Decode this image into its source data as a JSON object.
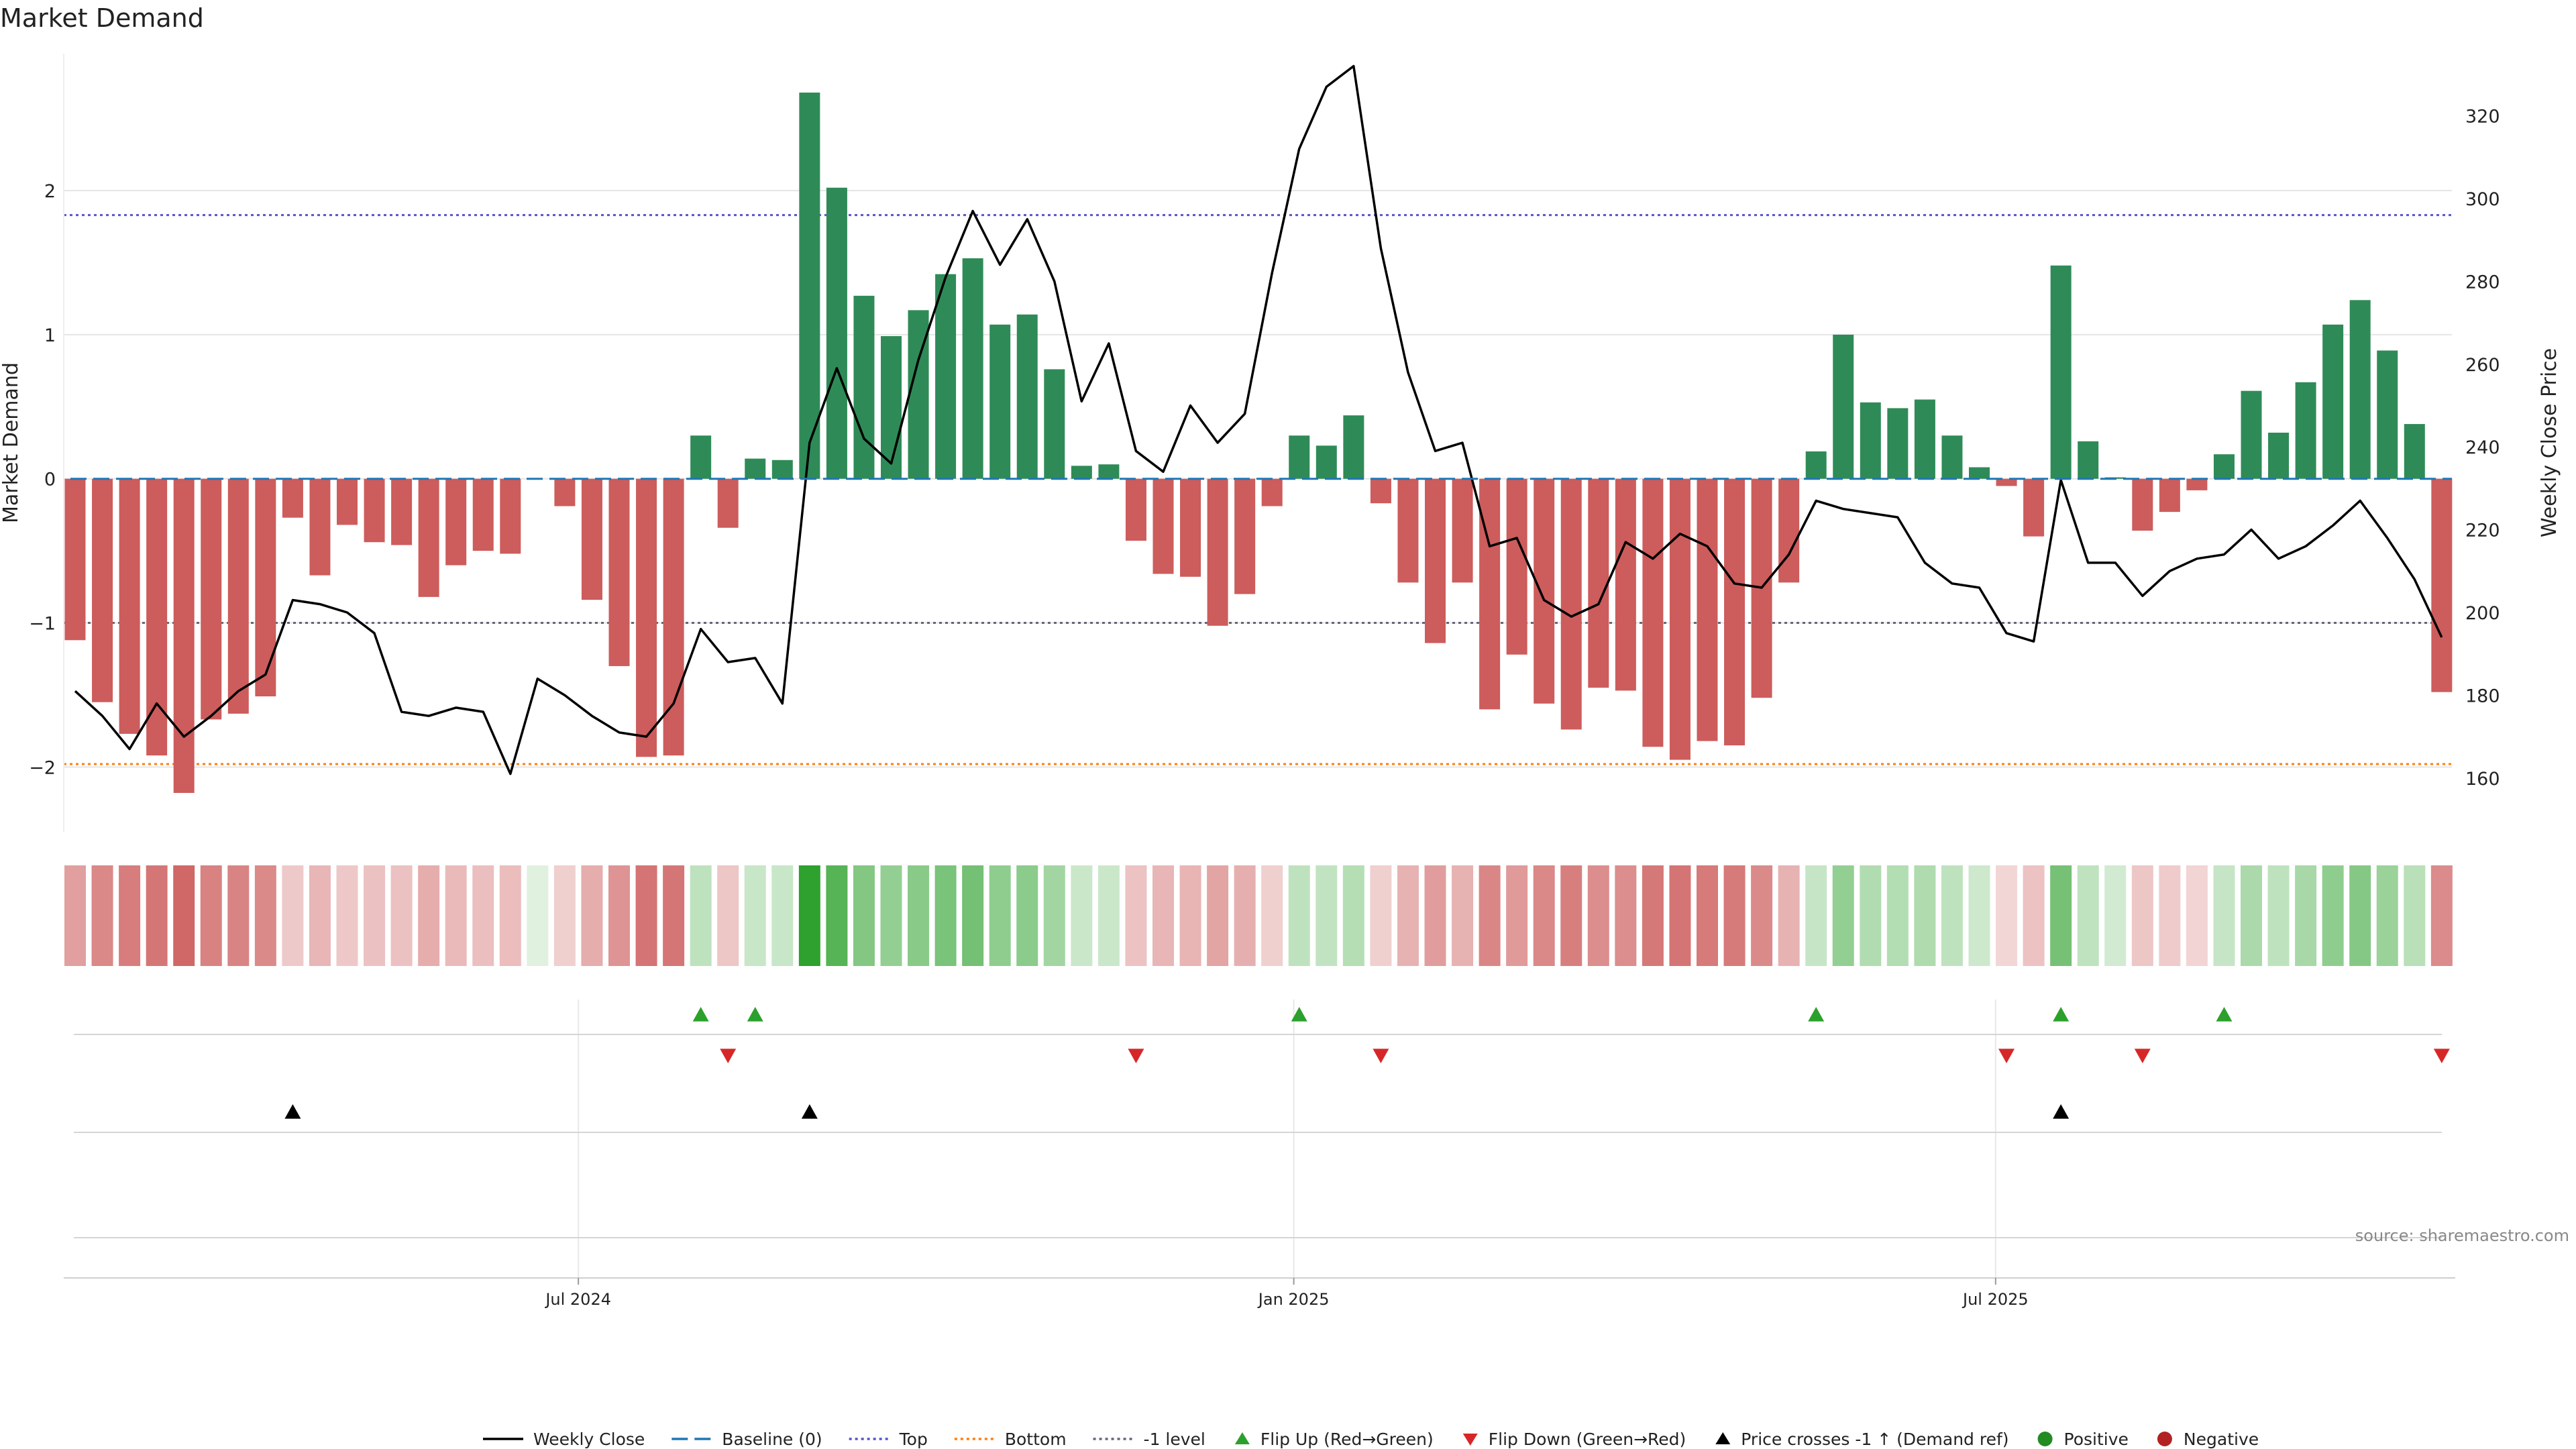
{
  "colors": {
    "positive_bar": "#2e8b57",
    "negative_bar": "#cd5c5c",
    "price_line": "#000000",
    "baseline": "#1f77b4",
    "top": "#5555cc",
    "bottom": "#ff7f0e",
    "minus_one": "#666677",
    "flip_up": "#2ca02c",
    "flip_down": "#d62728",
    "cross": "#000000",
    "grid": "#e5e5e5"
  },
  "chart_data": {
    "type": "bar",
    "title": "Market Demand",
    "ylabel": "Market Demand",
    "y2label": "Weekly Close Price",
    "xlabel": "",
    "ylim": [
      -2.45,
      2.95
    ],
    "y2lim": [
      147,
      335
    ],
    "yticks": [
      -2,
      -1,
      0,
      1,
      2
    ],
    "y2ticks": [
      160,
      180,
      200,
      220,
      240,
      260,
      280,
      300,
      320
    ],
    "xticks": [
      {
        "index": 18.5,
        "label": "Jul 2024"
      },
      {
        "index": 44.8,
        "label": "Jan 2025"
      },
      {
        "index": 70.6,
        "label": "Jul 2025"
      }
    ],
    "reference_lines": {
      "baseline": 0,
      "top": 1.83,
      "bottom": -1.98,
      "minus_one": -1.0
    },
    "demand": [
      -1.12,
      -1.55,
      -1.77,
      -1.92,
      -2.18,
      -1.67,
      -1.63,
      -1.51,
      -0.27,
      -0.67,
      -0.32,
      -0.44,
      -0.46,
      -0.82,
      -0.6,
      -0.5,
      -0.52,
      0.0,
      -0.19,
      -0.84,
      -1.3,
      -1.93,
      -1.92,
      0.3,
      -0.34,
      0.14,
      0.13,
      2.68,
      2.02,
      1.27,
      0.99,
      1.17,
      1.42,
      1.53,
      1.07,
      1.14,
      0.76,
      0.09,
      0.1,
      -0.43,
      -0.66,
      -0.68,
      -1.02,
      -0.8,
      -0.19,
      0.3,
      0.23,
      0.44,
      -0.17,
      -0.72,
      -1.14,
      -0.72,
      -1.6,
      -1.22,
      -1.56,
      -1.74,
      -1.45,
      -1.47,
      -1.86,
      -1.95,
      -1.82,
      -1.85,
      -1.52,
      -0.72,
      0.19,
      1.0,
      0.53,
      0.49,
      0.55,
      0.3,
      0.08,
      -0.05,
      -0.4,
      1.48,
      0.26,
      0.01,
      -0.36,
      -0.23,
      -0.08,
      0.17,
      0.61,
      0.32,
      0.67,
      1.07,
      1.24,
      0.89,
      0.38,
      -1.48
    ],
    "price": [
      181,
      175,
      167,
      178,
      170,
      175,
      181,
      185,
      203,
      202,
      200,
      195,
      176,
      175,
      177,
      176,
      161,
      184,
      180,
      175,
      171,
      170,
      178,
      196,
      188,
      189,
      178,
      241,
      259,
      242,
      236,
      261,
      281,
      297,
      284,
      295,
      280,
      251,
      265,
      239,
      234,
      250,
      241,
      248,
      282,
      312,
      327,
      332,
      288,
      258,
      239,
      241,
      216,
      218,
      203,
      199,
      202,
      217,
      213,
      219,
      216,
      207,
      206,
      214,
      227,
      225,
      224,
      223,
      212,
      207,
      206,
      195,
      193,
      232,
      212,
      212,
      204,
      210,
      213,
      214,
      220,
      213,
      216,
      221,
      227,
      218,
      208,
      194
    ],
    "flip_up": [
      23,
      25,
      45,
      64,
      73,
      79
    ],
    "flip_down": [
      24,
      39,
      48,
      71,
      76,
      87
    ],
    "price_cross_up": [
      8,
      27,
      73
    ],
    "source": "source: sharemaestro.com",
    "legend": [
      {
        "kind": "line",
        "label": "Weekly Close",
        "color": "#000000",
        "dash": ""
      },
      {
        "kind": "line",
        "label": "Baseline (0)",
        "color": "#1f77b4",
        "dash": "24,10"
      },
      {
        "kind": "line",
        "label": "Top",
        "color": "#5555cc",
        "dash": "4,5"
      },
      {
        "kind": "line",
        "label": "Bottom",
        "color": "#ff7f0e",
        "dash": "4,5"
      },
      {
        "kind": "line",
        "label": "-1 level",
        "color": "#666677",
        "dash": "4,5"
      },
      {
        "kind": "tri-up",
        "label": "Flip Up (Red→Green)",
        "color": "#2ca02c"
      },
      {
        "kind": "tri-down",
        "label": "Flip Down (Green→Red)",
        "color": "#d62728"
      },
      {
        "kind": "tri-up",
        "label": "Price crosses -1 ↑ (Demand ref)",
        "color": "#000000"
      },
      {
        "kind": "dot",
        "label": "Positive",
        "color": "#228b22"
      },
      {
        "kind": "dot",
        "label": "Negative",
        "color": "#b22222"
      }
    ]
  }
}
